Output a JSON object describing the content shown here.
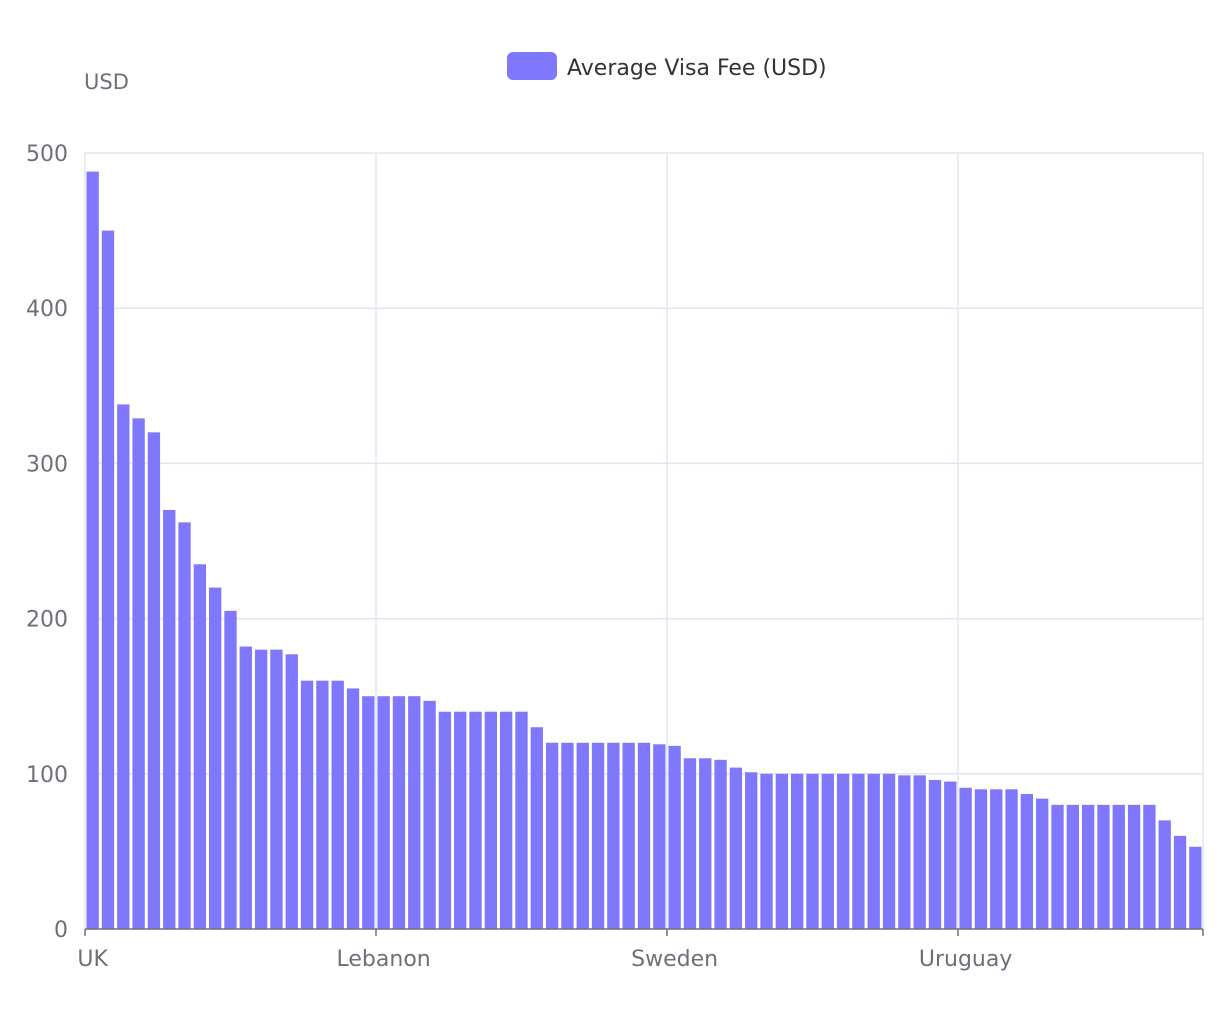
{
  "chart_data": {
    "type": "bar",
    "ylabel": "USD",
    "ylim": [
      0,
      500
    ],
    "yticks": [
      0,
      100,
      200,
      300,
      400,
      500
    ],
    "x_tick_labels": [
      "UK",
      "Lebanon",
      "Sweden",
      "Uruguay"
    ],
    "grid": true,
    "legend_position": "top-center",
    "colors": {
      "bar": "#7f77fc",
      "grid": "#e0e6f1",
      "axis": "#6e7079"
    },
    "series": [
      {
        "name": "Average Visa Fee (USD)",
        "values": [
          488,
          450,
          338,
          329,
          320,
          270,
          262,
          235,
          220,
          205,
          182,
          180,
          180,
          177,
          160,
          160,
          160,
          155,
          150,
          150,
          150,
          150,
          147,
          140,
          140,
          140,
          140,
          140,
          140,
          130,
          120,
          120,
          120,
          120,
          120,
          120,
          120,
          119,
          118,
          110,
          110,
          109,
          104,
          101,
          100,
          100,
          100,
          100,
          100,
          100,
          100,
          100,
          100,
          99,
          99,
          96,
          95,
          91,
          90,
          90,
          90,
          87,
          84,
          80,
          80,
          80,
          80,
          80,
          80,
          80,
          70,
          60,
          53
        ]
      }
    ]
  }
}
